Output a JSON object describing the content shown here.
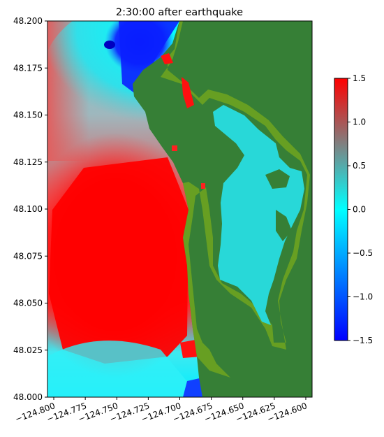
{
  "chart_data": {
    "type": "heatmap",
    "title": "2:30:00 after earthquake",
    "xlabel": "",
    "ylabel": "",
    "xlim": [
      -124.805,
      -124.595
    ],
    "ylim": [
      48.0,
      48.2
    ],
    "xticks": [
      -124.8,
      -124.775,
      -124.75,
      -124.725,
      -124.7,
      -124.675,
      -124.65,
      -124.625,
      -124.6
    ],
    "xtick_labels": [
      "−124.800",
      "−124.775",
      "−124.750",
      "−124.725",
      "−124.700",
      "−124.675",
      "−124.650",
      "−124.625",
      "−124.600"
    ],
    "yticks": [
      48.0,
      48.025,
      48.05,
      48.075,
      48.1,
      48.125,
      48.15,
      48.175,
      48.2
    ],
    "ytick_labels": [
      "48.000",
      "48.025",
      "48.050",
      "48.075",
      "48.100",
      "48.125",
      "48.150",
      "48.175",
      "48.200"
    ],
    "colorbar": {
      "range": [
        -1.5,
        1.5
      ],
      "ticks": [
        1.5,
        1.0,
        0.5,
        0.0,
        -0.5,
        -1.0,
        -1.5
      ],
      "tick_labels": [
        "1.5",
        "1.0",
        "0.5",
        "0.0",
        "−0.5",
        "−1.0",
        "−1.5"
      ],
      "colors": [
        "#0000ff",
        "#00ffff",
        "#808080",
        "#ff0000"
      ]
    },
    "land_colors": [
      "#367f36",
      "#70a41e"
    ],
    "grid": false
  }
}
